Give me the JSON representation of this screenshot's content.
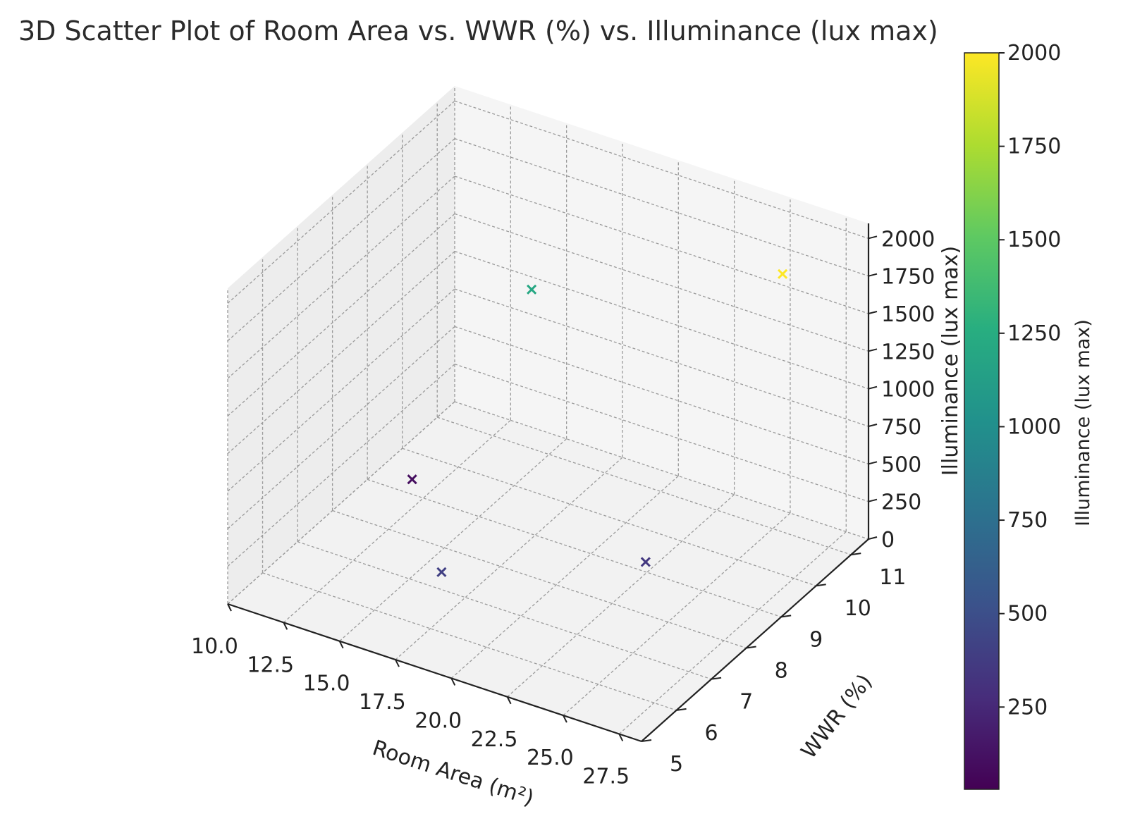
{
  "chart_data": {
    "type": "scatter",
    "title": "3D Scatter Plot of Room Area vs. WWR (%) vs. Illuminance (lux max)",
    "xlabel": "Room Area (m²)",
    "ylabel": "WWR (%)",
    "zlabel": "Illuminance (lux max)",
    "xlim": [
      10,
      28.5
    ],
    "ylim": [
      5,
      11.5
    ],
    "zlim": [
      0,
      2100
    ],
    "x_ticks": [
      "10.0",
      "12.5",
      "15.0",
      "17.5",
      "20.0",
      "22.5",
      "25.0",
      "27.5"
    ],
    "y_ticks": [
      "5",
      "6",
      "7",
      "8",
      "9",
      "10",
      "11"
    ],
    "z_ticks": [
      "0",
      "250",
      "500",
      "750",
      "1000",
      "1250",
      "1500",
      "1750",
      "2000"
    ],
    "marker": "x",
    "grid": true,
    "colormap": "viridis",
    "colorbar": {
      "label": "Illuminance (lux max)",
      "range": [
        30,
        2000
      ],
      "ticks": [
        "250",
        "500",
        "750",
        "1000",
        "1250",
        "1500",
        "1750",
        "2000"
      ]
    },
    "points": [
      {
        "x": 12.0,
        "y": 9.0,
        "z": 100
      },
      {
        "x": 18.0,
        "y": 6.0,
        "z": 400
      },
      {
        "x": 24.0,
        "y": 8.0,
        "z": 350
      },
      {
        "x": 15.0,
        "y": 10.5,
        "z": 1200
      },
      {
        "x": 27.0,
        "y": 10.0,
        "z": 2000
      }
    ]
  }
}
